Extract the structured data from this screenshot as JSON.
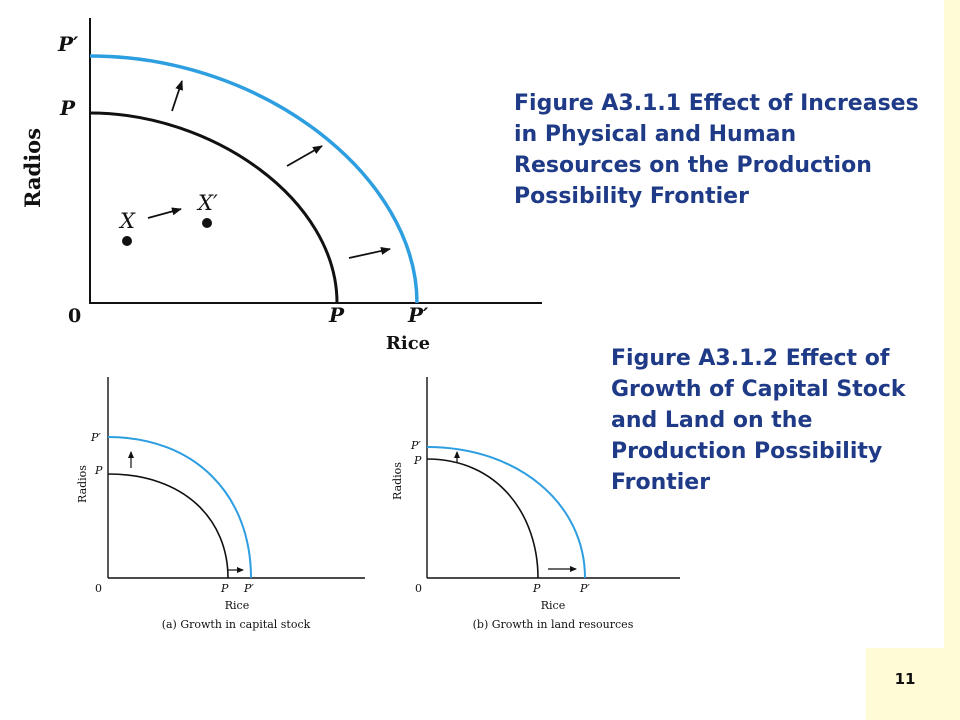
{
  "colors": {
    "original_frontier": "#111111",
    "new_frontier": "#2d9ee0",
    "caption": "#1f3b87",
    "accent_strip": "#fffbd6"
  },
  "figure_main": {
    "y_axis_label": "Radios",
    "x_axis_label": "Rice",
    "origin_label": "0",
    "p_prime_y": "P′",
    "p_y": "P",
    "p_x": "P",
    "p_prime_x": "P′",
    "point_x": "X",
    "point_x_prime": "X′"
  },
  "caption_main": "Figure A3.1.1  Effect of Increases in Physical and Human Resources on the Production Possibility Frontier",
  "caption_secondary": "Figure A3.1.2  Effect of Growth of Capital Stock and Land on the Production Possibility Frontier",
  "panel_a": {
    "y_axis_label": "Radios",
    "x_axis_label": "Rice",
    "origin_label": "0",
    "p_prime_y": "P′",
    "p_y": "P",
    "p_x": "P",
    "p_prime_x": "P′",
    "caption": "(a) Growth in capital stock"
  },
  "panel_b": {
    "y_axis_label": "Radios",
    "x_axis_label": "Rice",
    "origin_label": "0",
    "p_prime_y": "P′",
    "p_y": "P",
    "p_x": "P",
    "p_prime_x": "P′",
    "caption": "(b) Growth in land resources"
  },
  "page_number": "11"
}
